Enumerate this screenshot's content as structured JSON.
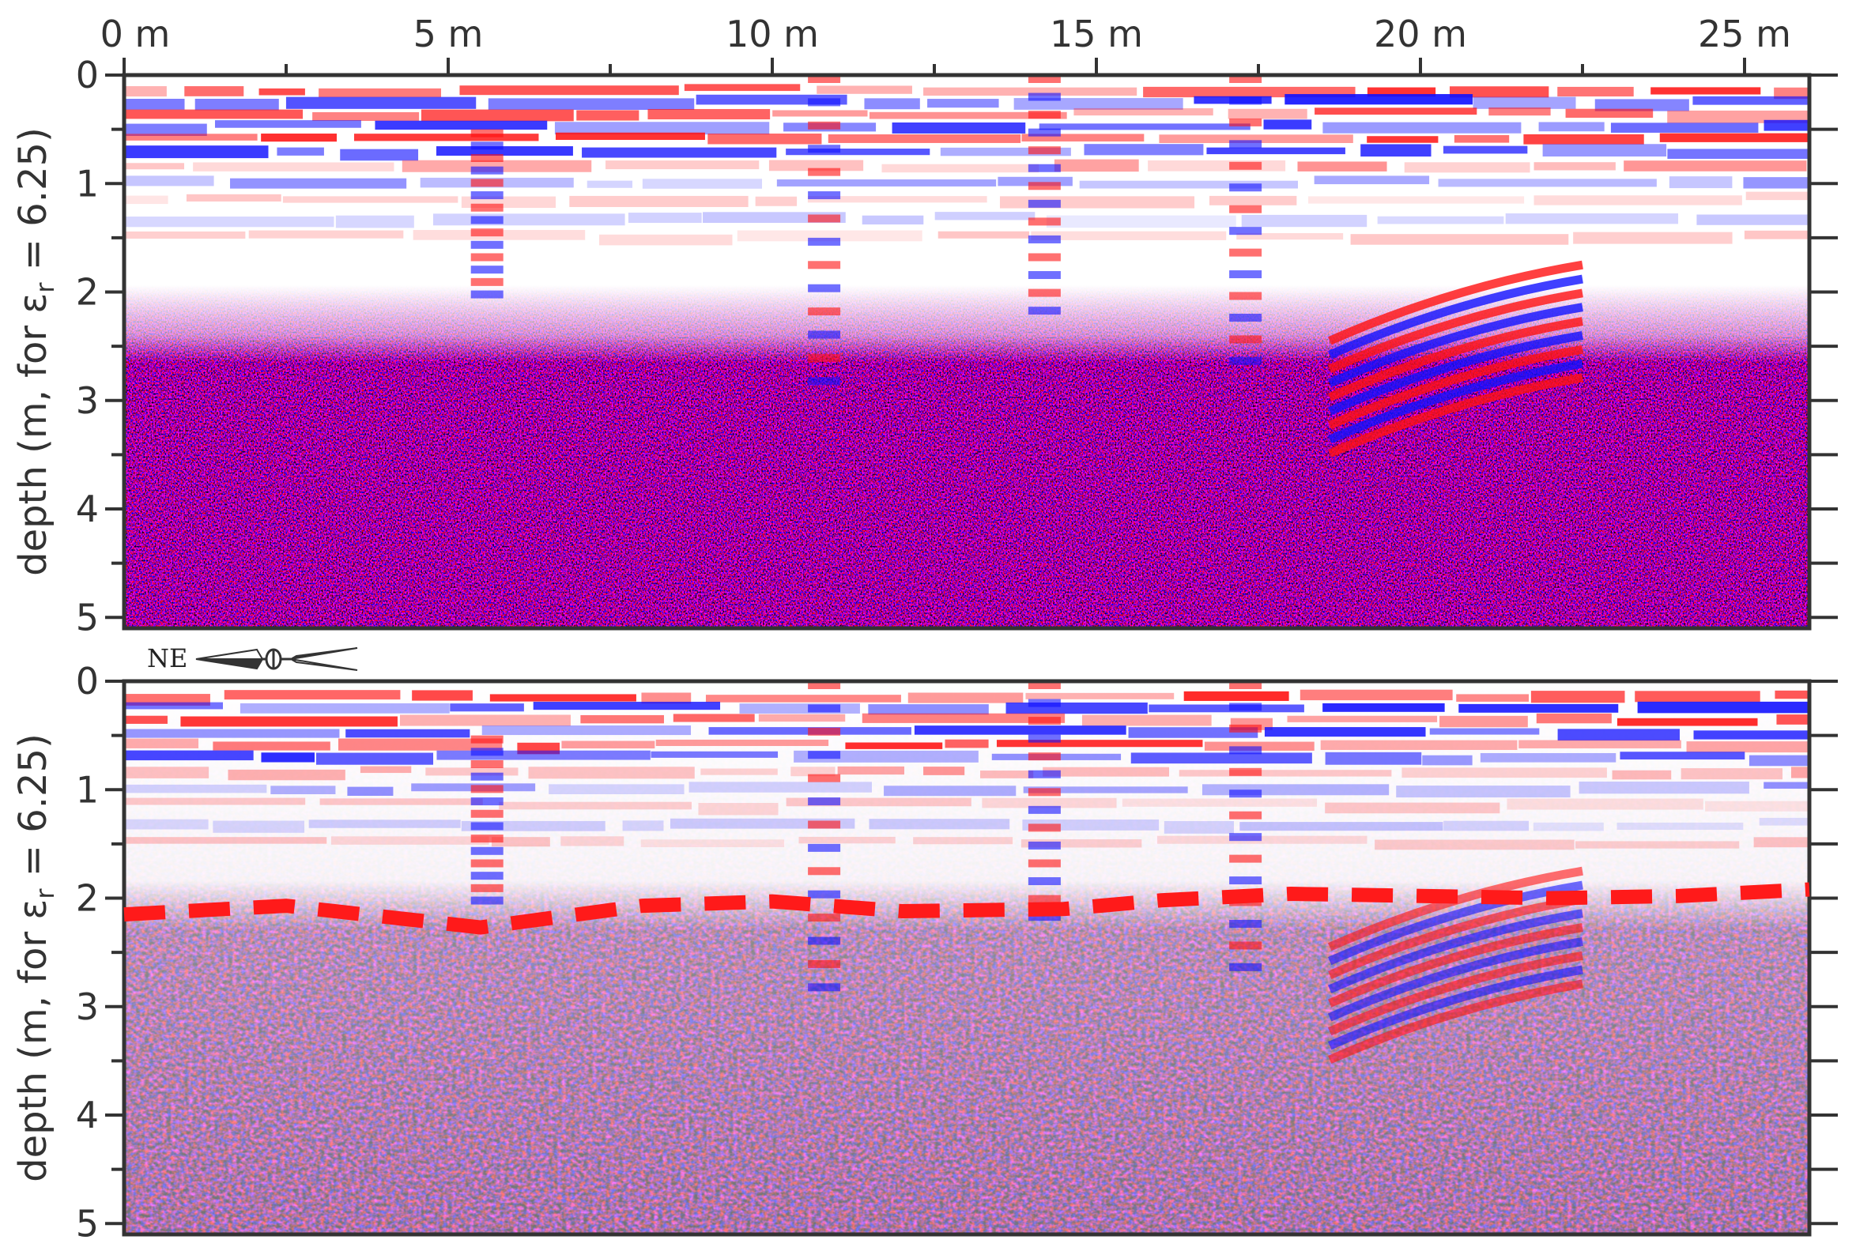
{
  "chart_data": [
    {
      "type": "heatmap",
      "panel": "top",
      "title": "",
      "xlabel": "",
      "ylabel": "depth (m, for εr = 6.25)",
      "xlim": [
        0,
        26
      ],
      "ylim": [
        0,
        5.1
      ],
      "x_ticks": [
        {
          "value": 0,
          "label": "0 m"
        },
        {
          "value": 5,
          "label": "5 m"
        },
        {
          "value": 10,
          "label": "10 m"
        },
        {
          "value": 15,
          "label": "15 m"
        },
        {
          "value": 20,
          "label": "20 m"
        },
        {
          "value": 25,
          "label": "25 m"
        }
      ],
      "y_ticks": [
        {
          "value": 0,
          "label": "0"
        },
        {
          "value": 1,
          "label": "1"
        },
        {
          "value": 2,
          "label": "2"
        },
        {
          "value": 3,
          "label": "3"
        },
        {
          "value": 4,
          "label": "4"
        },
        {
          "value": 5,
          "label": "5"
        }
      ],
      "colors": {
        "positive": "#ff0000",
        "negative": "#0000ff",
        "zero": "#ffffff"
      },
      "noise_onset_depth": 2.2
    },
    {
      "type": "heatmap",
      "panel": "bottom",
      "title": "",
      "xlabel": "",
      "ylabel": "depth (m, for εr = 6.25)",
      "xlim": [
        0,
        26
      ],
      "ylim": [
        0,
        5.1
      ],
      "y_ticks": [
        {
          "value": 0,
          "label": "0"
        },
        {
          "value": 1,
          "label": "1"
        },
        {
          "value": 2,
          "label": "2"
        },
        {
          "value": 3,
          "label": "3"
        },
        {
          "value": 4,
          "label": "4"
        },
        {
          "value": 5,
          "label": "5"
        }
      ],
      "colors": {
        "positive": "#ff0000",
        "negative": "#0000ff",
        "zero": "#ffffff"
      },
      "dashed_line": {
        "color": "#ff1a1a",
        "points": [
          [
            0,
            2.15
          ],
          [
            2.5,
            2.07
          ],
          [
            5.5,
            2.27
          ],
          [
            8,
            2.07
          ],
          [
            10,
            2.03
          ],
          [
            12,
            2.12
          ],
          [
            14.5,
            2.1
          ],
          [
            16,
            2.02
          ],
          [
            18,
            1.96
          ],
          [
            20,
            1.98
          ],
          [
            22,
            2.0
          ],
          [
            24,
            1.98
          ],
          [
            26,
            1.92
          ]
        ]
      }
    }
  ],
  "compass": {
    "label": "NE",
    "icon": "north-arrow-icon"
  }
}
